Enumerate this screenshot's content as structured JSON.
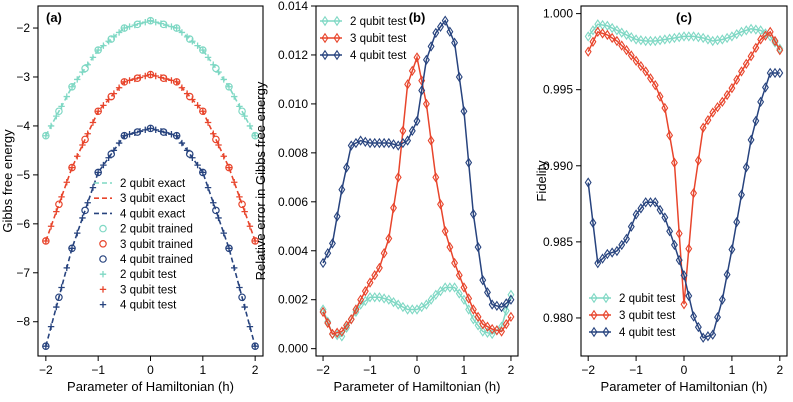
{
  "colors": {
    "2q": "#7fd8c4",
    "3q": "#e8452c",
    "4q": "#27437e"
  },
  "chart_data": [
    {
      "type": "line",
      "panel_label": "(a)",
      "xlabel": "Parameter of Hamiltonian (h)",
      "ylabel": "Gibbs free energy",
      "xlim": [
        -2.15,
        2.15
      ],
      "ylim": [
        -8.7,
        -1.55
      ],
      "xticks": [
        -2,
        -1,
        0,
        1,
        2
      ],
      "yticks": [
        -8,
        -7,
        -6,
        -5,
        -4,
        -3,
        -2
      ],
      "legend_position": "lower-center",
      "x": [
        -2,
        -1.5,
        -1,
        -0.5,
        0,
        0.5,
        1,
        1.5,
        2
      ],
      "series": [
        {
          "name": "2 qubit exact",
          "key": "2q",
          "style": "dashed",
          "values": [
            -4.2,
            -3.2,
            -2.45,
            -2.0,
            -1.85,
            -2.0,
            -2.45,
            -3.2,
            -4.2
          ]
        },
        {
          "name": "3 qubit exact",
          "key": "3q",
          "style": "dashed",
          "values": [
            -6.35,
            -4.85,
            -3.7,
            -3.1,
            -2.95,
            -3.1,
            -3.7,
            -4.85,
            -6.35
          ]
        },
        {
          "name": "4 qubit exact",
          "key": "4q",
          "style": "dashed",
          "values": [
            -8.5,
            -6.5,
            -4.95,
            -4.2,
            -4.05,
            -4.2,
            -4.95,
            -6.5,
            -8.5
          ]
        },
        {
          "name": "2 qubit trained",
          "key": "2q",
          "style": "circle",
          "values": [
            -4.2,
            -3.2,
            -2.45,
            -2.0,
            -1.85,
            -2.0,
            -2.45,
            -3.2,
            -4.2
          ]
        },
        {
          "name": "3 qubit trained",
          "key": "3q",
          "style": "circle",
          "values": [
            -6.35,
            -4.85,
            -3.7,
            -3.1,
            -2.95,
            -3.1,
            -3.7,
            -4.85,
            -6.35
          ]
        },
        {
          "name": "4 qubit trained",
          "key": "4q",
          "style": "circle",
          "values": [
            -8.5,
            -6.5,
            -4.95,
            -4.2,
            -4.05,
            -4.2,
            -4.95,
            -6.5,
            -8.5
          ]
        },
        {
          "name": "2 qubit test",
          "key": "2q",
          "style": "plus",
          "values": [
            -4.2,
            -3.2,
            -2.45,
            -2.0,
            -1.85,
            -2.0,
            -2.45,
            -3.2,
            -4.2
          ]
        },
        {
          "name": "3 qubit test",
          "key": "3q",
          "style": "plus",
          "values": [
            -6.35,
            -4.85,
            -3.7,
            -3.1,
            -2.95,
            -3.1,
            -3.7,
            -4.85,
            -6.35
          ]
        },
        {
          "name": "4 qubit test",
          "key": "4q",
          "style": "plus",
          "values": [
            -8.5,
            -6.5,
            -4.95,
            -4.2,
            -4.05,
            -4.2,
            -4.95,
            -6.5,
            -8.5
          ]
        }
      ]
    },
    {
      "type": "line",
      "panel_label": "(b)",
      "xlabel": "Parameter of Hamiltonian (h)",
      "ylabel": "Relative error in Gibbs free energy",
      "xlim": [
        -2.15,
        2.15
      ],
      "ylim": [
        -0.0003,
        0.014
      ],
      "xticks": [
        -2,
        -1,
        0,
        1,
        2
      ],
      "yticks": [
        0.0,
        0.002,
        0.004,
        0.006,
        0.008,
        0.01,
        0.012,
        0.014
      ],
      "ytick_labels": [
        "0.000",
        "0.002",
        "0.004",
        "0.006",
        "0.008",
        "0.010",
        "0.012",
        "0.014"
      ],
      "legend_position": "top-left",
      "x": [
        -2.0,
        -1.8,
        -1.6,
        -1.4,
        -1.2,
        -1.0,
        -0.8,
        -0.6,
        -0.4,
        -0.2,
        0.0,
        0.2,
        0.4,
        0.6,
        0.8,
        1.0,
        1.2,
        1.4,
        1.6,
        1.8,
        2.0
      ],
      "series": [
        {
          "name": "2 qubit test",
          "key": "2q",
          "style": "diamond",
          "values": [
            0.0016,
            0.0006,
            0.0005,
            0.0012,
            0.0018,
            0.0021,
            0.0021,
            0.002,
            0.0018,
            0.0016,
            0.0016,
            0.0018,
            0.0022,
            0.0025,
            0.0025,
            0.002,
            0.0012,
            0.0007,
            0.0006,
            0.0009,
            0.0022
          ]
        },
        {
          "name": "3 qubit test",
          "key": "3q",
          "style": "diamond",
          "values": [
            0.0015,
            0.0006,
            0.0007,
            0.0012,
            0.002,
            0.0027,
            0.0033,
            0.0045,
            0.007,
            0.0108,
            0.0119,
            0.01,
            0.007,
            0.0048,
            0.0035,
            0.0025,
            0.0016,
            0.001,
            0.0008,
            0.0007,
            0.0013
          ]
        },
        {
          "name": "4 qubit test",
          "key": "4q",
          "style": "diamond",
          "values": [
            0.0035,
            0.0043,
            0.0065,
            0.0083,
            0.0085,
            0.0084,
            0.0084,
            0.0084,
            0.0083,
            0.0085,
            0.0093,
            0.0118,
            0.0129,
            0.0134,
            0.0125,
            0.0097,
            0.0055,
            0.0028,
            0.0018,
            0.0017,
            0.002
          ]
        }
      ]
    },
    {
      "type": "line",
      "panel_label": "(c)",
      "xlabel": "Parameter of Hamiltonian (h)",
      "ylabel": "Fidelity",
      "xlim": [
        -2.15,
        2.15
      ],
      "ylim": [
        0.9775,
        1.0005
      ],
      "xticks": [
        -2,
        -1,
        0,
        1,
        2
      ],
      "yticks": [
        0.98,
        0.985,
        0.99,
        0.995,
        1.0
      ],
      "ytick_labels": [
        "0.980",
        "0.985",
        "0.990",
        "0.995",
        "1.000"
      ],
      "legend_position": "lower-left",
      "x": [
        -2.0,
        -1.8,
        -1.6,
        -1.4,
        -1.2,
        -1.0,
        -0.8,
        -0.6,
        -0.4,
        -0.2,
        0.0,
        0.2,
        0.4,
        0.6,
        0.8,
        1.0,
        1.2,
        1.4,
        1.6,
        1.8,
        2.0
      ],
      "series": [
        {
          "name": "2 qubit test",
          "key": "2q",
          "style": "diamond",
          "values": [
            0.9985,
            0.9993,
            0.9992,
            0.9989,
            0.9986,
            0.9983,
            0.9982,
            0.9982,
            0.9983,
            0.9984,
            0.9985,
            0.9985,
            0.9984,
            0.9982,
            0.9983,
            0.9985,
            0.9988,
            0.999,
            0.9989,
            0.9985,
            0.9977
          ]
        },
        {
          "name": "3 qubit test",
          "key": "3q",
          "style": "diamond",
          "values": [
            0.9975,
            0.9988,
            0.9986,
            0.9982,
            0.9976,
            0.9969,
            0.9962,
            0.9953,
            0.9938,
            0.9902,
            0.9809,
            0.9882,
            0.9925,
            0.9935,
            0.9942,
            0.9951,
            0.9962,
            0.9972,
            0.9983,
            0.9988,
            0.9976
          ]
        },
        {
          "name": "4 qubit test",
          "key": "4q",
          "style": "diamond",
          "values": [
            0.9889,
            0.9836,
            0.9842,
            0.9844,
            0.9852,
            0.9868,
            0.9876,
            0.9876,
            0.9866,
            0.9848,
            0.9828,
            0.9801,
            0.9787,
            0.9789,
            0.9812,
            0.9845,
            0.9881,
            0.9917,
            0.9942,
            0.9961,
            0.9961
          ]
        }
      ]
    }
  ]
}
